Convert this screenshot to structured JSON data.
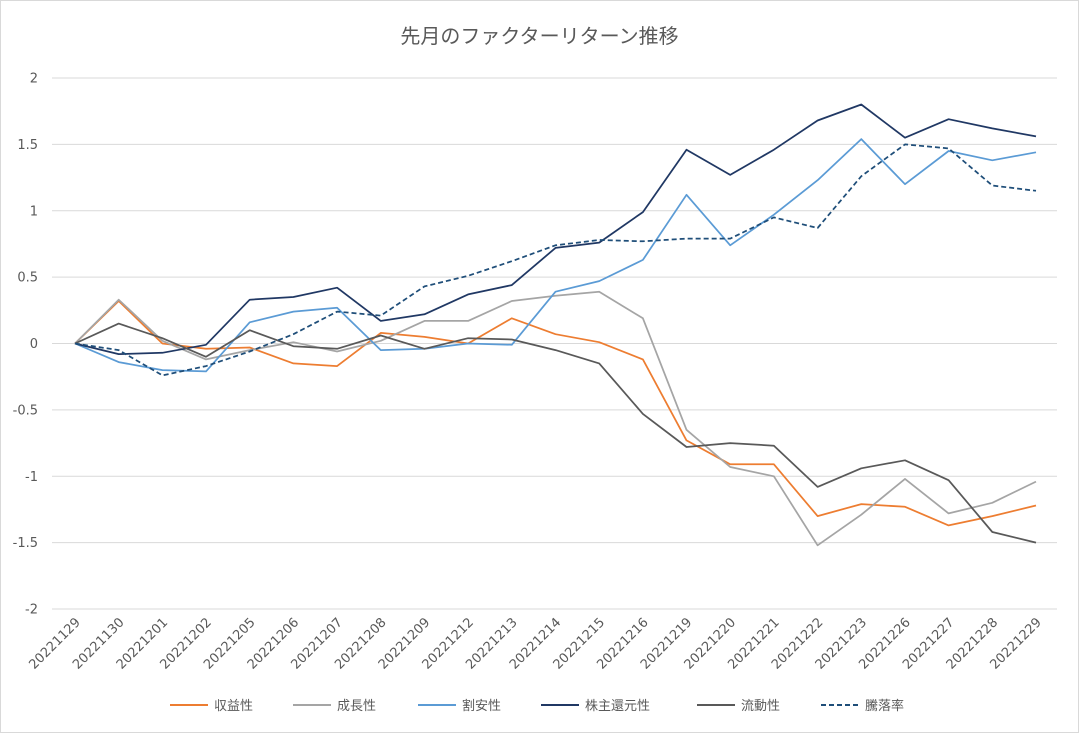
{
  "chart_data": {
    "type": "line",
    "title": "先月のファクターリターン推移",
    "xlabel": "",
    "ylabel": "",
    "ylim": [
      -2,
      2
    ],
    "yticks": [
      "2",
      "1.5",
      "1",
      "0.5",
      "0",
      "-0.5",
      "-1",
      "-1.5",
      "-2"
    ],
    "ytick_values": [
      2,
      1.5,
      1,
      0.5,
      0,
      -0.5,
      -1,
      -1.5,
      -2
    ],
    "grid": "horizontal",
    "legend_position": "bottom",
    "categories": [
      "20221129",
      "20221130",
      "20221201",
      "20221202",
      "20221205",
      "20221206",
      "20221207",
      "20221208",
      "20221209",
      "20221212",
      "20221213",
      "20221214",
      "20221215",
      "20221216",
      "20221219",
      "20221220",
      "20221221",
      "20221222",
      "20221223",
      "20221226",
      "20221227",
      "20221228",
      "20221229"
    ],
    "series": [
      {
        "name": "収益性",
        "color": "#ED7D31",
        "dash": "solid",
        "values": [
          0,
          0.32,
          0.0,
          -0.04,
          -0.03,
          -0.15,
          -0.17,
          0.08,
          0.05,
          0.0,
          0.19,
          0.07,
          0.01,
          -0.12,
          -0.73,
          -0.91,
          -0.91,
          -1.3,
          -1.21,
          -1.23,
          -1.37,
          -1.3,
          -1.22
        ]
      },
      {
        "name": "成長性",
        "color": "#A5A5A5",
        "dash": "solid",
        "values": [
          0,
          0.33,
          0.02,
          -0.12,
          -0.05,
          0.01,
          -0.06,
          0.02,
          0.17,
          0.17,
          0.32,
          0.36,
          0.39,
          0.19,
          -0.65,
          -0.93,
          -1.0,
          -1.52,
          -1.29,
          -1.02,
          -1.28,
          -1.2,
          -1.04
        ]
      },
      {
        "name": "割安性",
        "color": "#5B9BD5",
        "dash": "solid",
        "values": [
          0,
          -0.14,
          -0.2,
          -0.21,
          0.16,
          0.24,
          0.27,
          -0.05,
          -0.04,
          0.0,
          -0.01,
          0.39,
          0.47,
          0.63,
          1.12,
          0.74,
          0.97,
          1.23,
          1.54,
          1.2,
          1.45,
          1.38,
          1.44
        ]
      },
      {
        "name": "株主還元性",
        "color": "#203864",
        "dash": "solid",
        "values": [
          0,
          -0.08,
          -0.07,
          -0.01,
          0.33,
          0.35,
          0.42,
          0.17,
          0.22,
          0.37,
          0.44,
          0.72,
          0.76,
          0.99,
          1.46,
          1.27,
          1.46,
          1.68,
          1.8,
          1.55,
          1.69,
          1.62,
          1.56
        ]
      },
      {
        "name": "流動性",
        "color": "#595959",
        "dash": "solid",
        "values": [
          0,
          0.15,
          0.04,
          -0.1,
          0.1,
          -0.02,
          -0.04,
          0.06,
          -0.04,
          0.04,
          0.03,
          -0.05,
          -0.15,
          -0.53,
          -0.78,
          -0.75,
          -0.77,
          -1.08,
          -0.94,
          -0.88,
          -1.03,
          -1.42,
          -1.5
        ]
      },
      {
        "name": "騰落率",
        "color": "#1F4E79",
        "dash": "dashed",
        "values": [
          0,
          -0.05,
          -0.24,
          -0.17,
          -0.06,
          0.07,
          0.24,
          0.21,
          0.43,
          0.51,
          0.62,
          0.74,
          0.78,
          0.77,
          0.79,
          0.79,
          0.95,
          0.87,
          1.26,
          1.5,
          1.47,
          1.19,
          1.15
        ]
      }
    ]
  }
}
